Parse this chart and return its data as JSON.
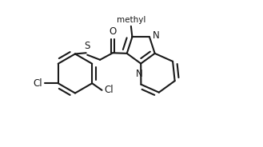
{
  "bg_color": "#ffffff",
  "line_color": "#1a1a1a",
  "lw": 1.5,
  "fs": 8.5,
  "figsize": [
    3.29,
    1.84
  ],
  "dpi": 100,
  "xlim": [
    -0.5,
    9.5
  ],
  "ylim": [
    -0.5,
    5.5
  ],
  "S_label": "S",
  "O_label": "O",
  "N1_label": "N",
  "N2_label": "N",
  "Cl1_label": "Cl",
  "Cl2_label": "Cl",
  "methyl_label": "methyl"
}
